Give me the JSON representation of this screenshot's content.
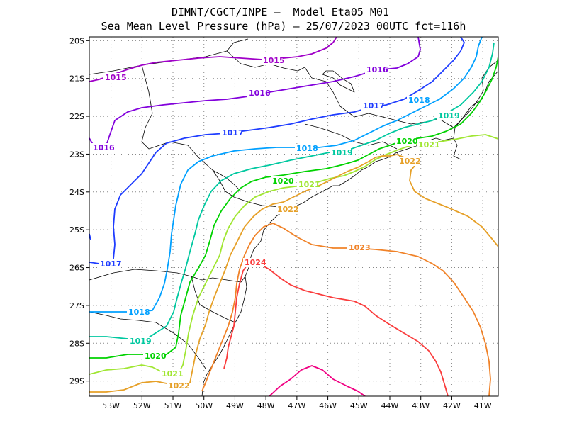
{
  "title": {
    "line1": "DIMNT/CGCT/INPE –  Model Eta05_M01_",
    "line2": "Sea Mean Level Pressure (hPa) – 25/07/2023 00UTC fct=116h"
  },
  "chart_data": {
    "type": "contour_map",
    "variable": "Sea Mean Level Pressure (hPa)",
    "forecast": "fct=116h",
    "date": "25/07/2023 00UTC",
    "lon_range": [
      -53.7,
      -40.5
    ],
    "lat_range": [
      -29.4,
      -19.9
    ],
    "x_ticks": [
      "53W",
      "52W",
      "51W",
      "50W",
      "49W",
      "48W",
      "47W",
      "46W",
      "45W",
      "44W",
      "43W",
      "42W",
      "41W"
    ],
    "y_ticks": [
      "20S",
      "21S",
      "22S",
      "23S",
      "24S",
      "25S",
      "26S",
      "27S",
      "28S",
      "29S"
    ],
    "grid": true,
    "isobars": [
      {
        "value": 1015,
        "color": "#a000c8",
        "labels": [
          "1015",
          "1015"
        ]
      },
      {
        "value": 1016,
        "color": "#8200dc",
        "labels": [
          "1016",
          "1016",
          "1016"
        ]
      },
      {
        "value": 1017,
        "color": "#1e3cff",
        "labels": [
          "1017",
          "1017",
          "1017"
        ]
      },
      {
        "value": 1018,
        "color": "#00a0ff",
        "labels": [
          "1018",
          "1018",
          "1018"
        ]
      },
      {
        "value": 1019,
        "color": "#00c8a0",
        "labels": [
          "1019",
          "1019",
          "1019"
        ]
      },
      {
        "value": 1020,
        "color": "#00d200",
        "labels": [
          "1020",
          "1020",
          "1020"
        ]
      },
      {
        "value": 1021,
        "color": "#a0e632",
        "labels": [
          "1021",
          "1021",
          "1021"
        ]
      },
      {
        "value": 1022,
        "color": "#e6a028",
        "labels": [
          "1022",
          "1022",
          "1022"
        ]
      },
      {
        "value": 1023,
        "color": "#f08228",
        "labels": [
          "1023"
        ]
      },
      {
        "value": 1024,
        "color": "#fa3c3c",
        "labels": [
          "1024"
        ]
      },
      {
        "value": 1025,
        "color": "#f00082",
        "labels": []
      }
    ]
  }
}
